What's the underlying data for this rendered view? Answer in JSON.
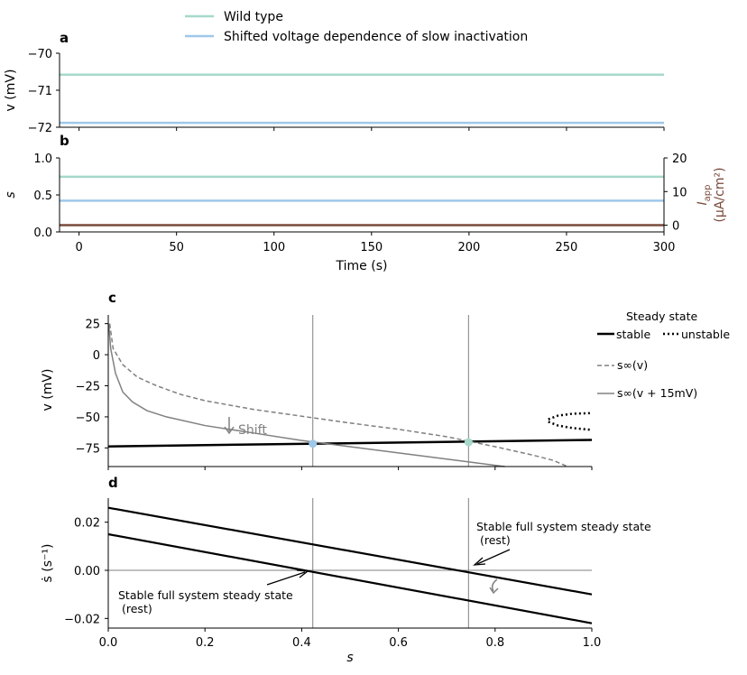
{
  "legend_top": {
    "items": [
      {
        "label": "Wild type",
        "color": "#a6d8cb"
      },
      {
        "label": "Shifted voltage dependence of slow inactivation",
        "color": "#9fc8e8"
      }
    ]
  },
  "colors": {
    "wild": "#a6d8cb",
    "shifted": "#9fc8e8",
    "iapp": "#7a4a3a",
    "grey": "#808080",
    "black": "#000000"
  },
  "panel_letters": {
    "a": "a",
    "b": "b",
    "c": "c",
    "d": "d"
  },
  "legend_c": {
    "title": "Steady state",
    "stable": "stable",
    "unstable": "unstable",
    "s_inf": "s∞(v)",
    "s_inf_shift": "s∞(v + 15mV)"
  },
  "annotations": {
    "shift": "Shift",
    "steady_right_1": "Stable full system steady state",
    "steady_right_2": "(rest)",
    "steady_left_1": "Stable full system steady state",
    "steady_left_2": "(rest)"
  },
  "chart_data": [
    {
      "id": "a",
      "type": "line",
      "title": "",
      "xlabel": "",
      "ylabel": "v (mV)",
      "xlim": [
        -10,
        300
      ],
      "ylim": [
        -72,
        -70
      ],
      "yticks": [
        "-70",
        "-71",
        "-72"
      ],
      "series": [
        {
          "name": "Wild type",
          "x": [
            -10,
            300
          ],
          "y": [
            -70.58,
            -70.58
          ]
        },
        {
          "name": "Shifted voltage dependence of slow inactivation",
          "x": [
            -10,
            300
          ],
          "y": [
            -71.88,
            -71.88
          ]
        }
      ]
    },
    {
      "id": "b",
      "type": "line",
      "title": "",
      "xlabel": "Time (s)",
      "ylabel": "s",
      "ylabel_right": "I_app (μA/cm²)",
      "ylabel_right_main": "I",
      "ylabel_right_sub": "app",
      "ylabel_right_units": "(μA/cm²)",
      "xlim": [
        -10,
        300
      ],
      "ylim": [
        0,
        1
      ],
      "ylim_right": [
        -2,
        20
      ],
      "xticks": [
        "0",
        "50",
        "100",
        "150",
        "200",
        "250",
        "300"
      ],
      "yticks": [
        "0.0",
        "0.5",
        "1.0"
      ],
      "yticks_right": [
        "0",
        "10",
        "20"
      ],
      "series": [
        {
          "name": "Wild type",
          "x": [
            -10,
            300
          ],
          "y": [
            0.745,
            0.745
          ]
        },
        {
          "name": "Shifted voltage dependence of slow inactivation",
          "x": [
            -10,
            300
          ],
          "y": [
            0.423,
            0.423
          ]
        },
        {
          "name": "I_app",
          "axis": "right",
          "x": [
            -10,
            300
          ],
          "y": [
            0,
            0
          ]
        }
      ]
    },
    {
      "id": "c",
      "type": "line",
      "title": "",
      "xlabel": "",
      "ylabel": "v (mV)",
      "xlim": [
        0,
        1
      ],
      "ylim": [
        -90,
        32
      ],
      "yticks": [
        "25",
        "0",
        "-25",
        "-50",
        "-75"
      ],
      "vlines": [
        0.423,
        0.745
      ],
      "series": [
        {
          "name": "stable",
          "style": "solid",
          "x": [
            0,
            1
          ],
          "y": [
            -73.8,
            -68.6
          ]
        },
        {
          "name": "unstable",
          "style": "dotted",
          "x": [
            0.91,
            0.93,
            0.96,
            1.0
          ],
          "y": [
            -52,
            -49,
            -47.5,
            -47
          ]
        },
        {
          "name": "unstable",
          "style": "dotted",
          "x": [
            0.91,
            0.93,
            0.96,
            1.0
          ],
          "y": [
            -54,
            -57,
            -59,
            -60.5
          ]
        },
        {
          "name": "s∞(v)",
          "style": "dashed",
          "x": [
            0.003,
            0.01,
            0.03,
            0.06,
            0.1,
            0.15,
            0.2,
            0.3,
            0.4,
            0.5,
            0.6,
            0.7,
            0.8,
            0.88,
            0.92,
            0.95
          ],
          "y": [
            25,
            5,
            -8,
            -18,
            -25,
            -32,
            -37,
            -44,
            -49.5,
            -55,
            -60,
            -66,
            -74,
            -81,
            -85,
            -90
          ]
        },
        {
          "name": "s∞(v + 15mV)",
          "style": "solid",
          "x": [
            0.001,
            0.005,
            0.015,
            0.03,
            0.05,
            0.08,
            0.12,
            0.2,
            0.3,
            0.4,
            0.5,
            0.6,
            0.7,
            0.78,
            0.82
          ],
          "y": [
            25,
            5,
            -15,
            -30,
            -38,
            -45,
            -50,
            -57,
            -63,
            -69,
            -74,
            -79,
            -84,
            -88,
            -90
          ]
        }
      ],
      "points": [
        {
          "name": "Shifted steady state",
          "s": 0.423,
          "v": -71.6
        },
        {
          "name": "Wild type steady state",
          "s": 0.745,
          "v": -70.4
        }
      ]
    },
    {
      "id": "d",
      "type": "line",
      "title": "",
      "xlabel": "s",
      "ylabel": "ṡ (s⁻¹)",
      "xlim": [
        0,
        1
      ],
      "ylim": [
        -0.024,
        0.03
      ],
      "xticks": [
        "0.0",
        "0.2",
        "0.4",
        "0.6",
        "0.8",
        "1.0"
      ],
      "yticks": [
        "0.02",
        "0.00",
        "-0.02"
      ],
      "vlines": [
        0.423,
        0.745
      ],
      "hline": 0,
      "series": [
        {
          "name": "Wild type",
          "x": [
            0,
            1
          ],
          "y": [
            0.026,
            -0.01
          ]
        },
        {
          "name": "Shifted voltage dependence of slow inactivation",
          "x": [
            0,
            1
          ],
          "y": [
            0.015,
            -0.022
          ]
        }
      ]
    }
  ]
}
